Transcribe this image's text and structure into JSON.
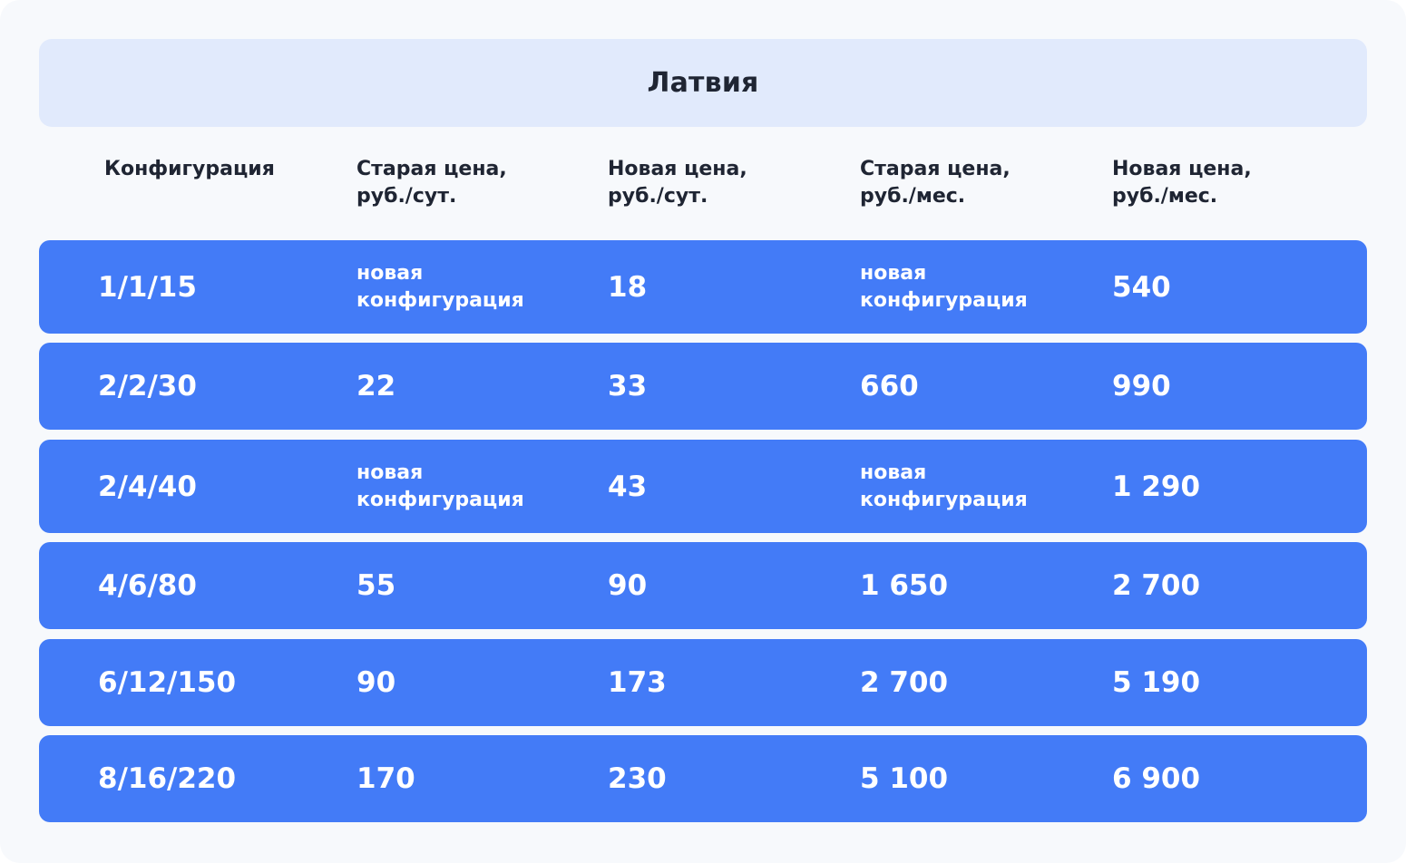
{
  "table": {
    "title": "Латвия",
    "headers": [
      "Конфигурация",
      "Старая цена,\nруб./сут.",
      "Новая цена,\nруб./сут.",
      "Старая цена,\nруб./мес.",
      "Новая цена,\nруб./мес."
    ],
    "rows": [
      [
        "1/1/15",
        "новая\nконфигурация",
        "18",
        "новая\nконфигурация",
        "540"
      ],
      [
        "2/2/30",
        "22",
        "33",
        "660",
        "990"
      ],
      [
        "2/4/40",
        "новая\nконфигурация",
        "43",
        "новая\nконфигурация",
        "1 290"
      ],
      [
        "4/6/80",
        "55",
        "90",
        "1 650",
        "2 700"
      ],
      [
        "6/12/150",
        "90",
        "173",
        "2 700",
        "5 190"
      ],
      [
        "8/16/220",
        "170",
        "230",
        "5 100",
        "6 900"
      ]
    ],
    "colors": {
      "row_background": "#437bf7",
      "title_background": "#e1eafc",
      "page_background": "#f7f9fc",
      "header_text": "#1f2533",
      "row_text": "#ffffff"
    }
  }
}
